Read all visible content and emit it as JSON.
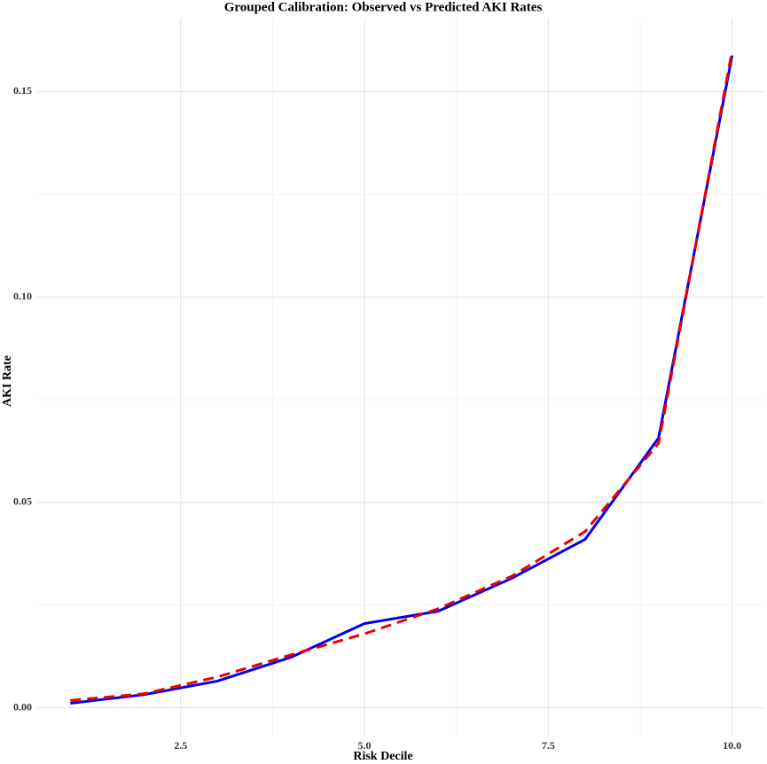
{
  "chart_data": {
    "type": "line",
    "title": "Grouped Calibration: Observed vs Predicted AKI Rates",
    "x_label": "Risk Decile",
    "y_label": "AKI Rate",
    "x": [
      1,
      2,
      3,
      4,
      5,
      6,
      7,
      8,
      9,
      10
    ],
    "series": [
      {
        "color": "#0000ee",
        "linestyle": "solid",
        "values": [
          0.0011,
          0.0032,
          0.0065,
          0.0123,
          0.0205,
          0.0235,
          0.0315,
          0.041,
          0.0657,
          0.1588
        ]
      },
      {
        "color": "#ee0000",
        "linestyle": "dashed",
        "values": [
          0.0018,
          0.0034,
          0.0075,
          0.0129,
          0.018,
          0.0241,
          0.032,
          0.0429,
          0.0644,
          0.16
        ]
      }
    ],
    "xlim": [
      0.55,
      10.45
    ],
    "xticks": [
      2.5,
      {
        "value": 5,
        "label": "5.0"
      },
      7.5,
      {
        "value": 10,
        "label": "10.0"
      }
    ],
    "ylim": [
      -0.007,
      0.168
    ],
    "yticks": [
      {
        "value": 0,
        "label": "0.00"
      },
      {
        "value": 0.05,
        "label": "0.05"
      },
      {
        "value": 0.1,
        "label": "0.10"
      },
      {
        "value": 0.15,
        "label": "0.15"
      }
    ],
    "grid": true
  }
}
